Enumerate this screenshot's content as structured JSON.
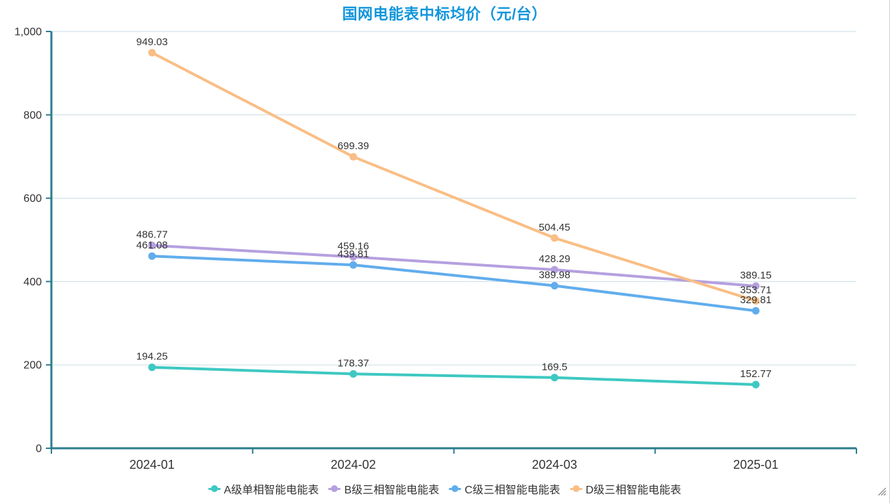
{
  "colors": {
    "title": "#1296db",
    "axis": "#2a7d8e",
    "grid": "#c9dde4",
    "text": "#333333",
    "resize_handle": "#8c8c8c"
  },
  "chart_data": {
    "type": "line",
    "title": "国网电能表中标均价（元/台）",
    "categories": [
      "2024-01",
      "2024-02",
      "2024-03",
      "2025-01"
    ],
    "series": [
      {
        "name": "A级单相智能电能表",
        "color": "#3ec8c2",
        "values": [
          194.25,
          178.37,
          169.5,
          152.77
        ]
      },
      {
        "name": "B级三相智能电能表",
        "color": "#b5a0df",
        "values": [
          486.77,
          459.16,
          428.29,
          389.15
        ]
      },
      {
        "name": "C级三相智能电能表",
        "color": "#61adec",
        "values": [
          461.08,
          439.81,
          389.98,
          329.81
        ]
      },
      {
        "name": "D级三相智能电能表",
        "color": "#f9be85",
        "values": [
          949.03,
          699.39,
          504.45,
          353.71
        ]
      }
    ],
    "ylim": [
      0,
      1000
    ],
    "yticks": [
      0,
      200,
      400,
      600,
      800,
      1000
    ],
    "ytick_labels": [
      "0",
      "200",
      "400",
      "600",
      "800",
      "1,000"
    ],
    "grid": true,
    "legend_position": "bottom",
    "data_labels": true
  }
}
